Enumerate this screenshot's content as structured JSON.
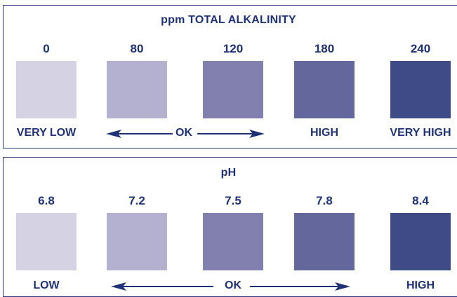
{
  "alkalinity": {
    "title": "ppm TOTAL ALKALINITY",
    "values": [
      "0",
      "80",
      "120",
      "180",
      "240"
    ],
    "labels": {
      "very_low": "VERY LOW",
      "ok": "OK",
      "high": "HIGH",
      "very_high": "VERY HIGH"
    }
  },
  "ph": {
    "title": "pH",
    "values": [
      "6.8",
      "7.2",
      "7.5",
      "7.8",
      "8.4"
    ],
    "labels": {
      "low": "LOW",
      "ok": "OK",
      "high": "HIGH"
    }
  },
  "colors": {
    "text": "#1e3175",
    "border": "#2a3a7a",
    "swatches": [
      "#d5d3e3",
      "#b3b1cf",
      "#8180ae",
      "#63679c",
      "#3e4b87"
    ]
  }
}
